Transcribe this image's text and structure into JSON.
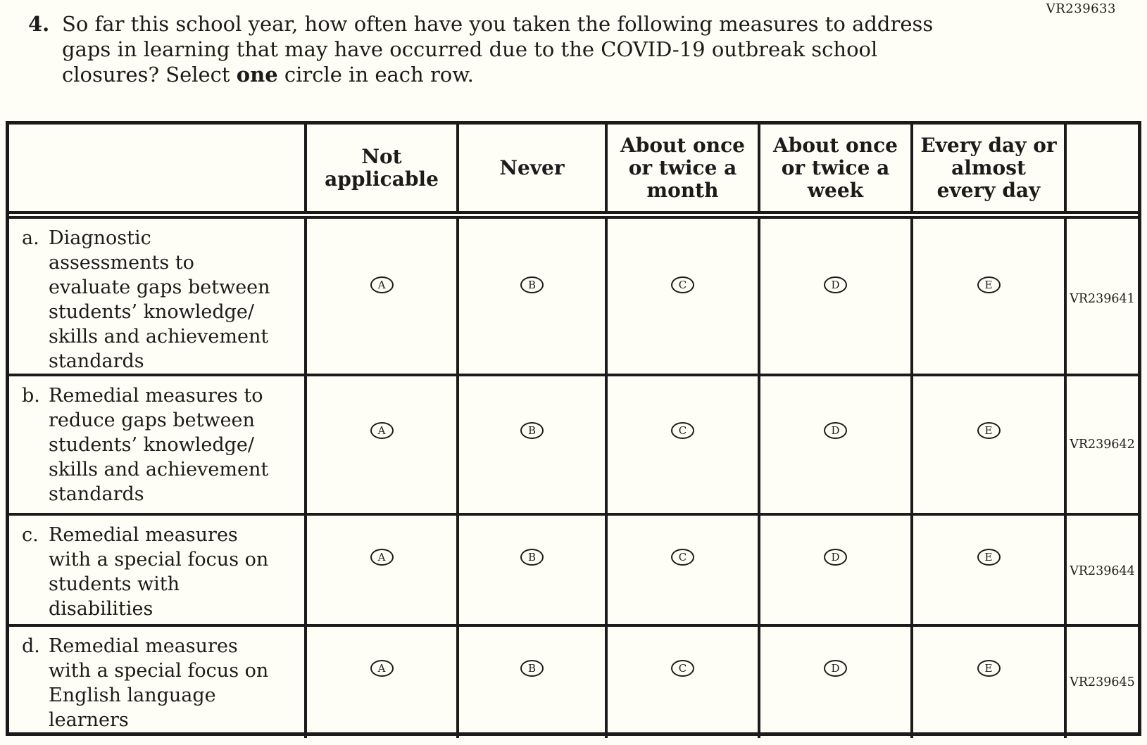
{
  "page_code": "VR239633",
  "question": {
    "number": "4.",
    "lines": [
      "So far this school year, how often have you taken the following measures to address",
      "gaps in learning that may have occurred due to the COVID-19 outbreak school"
    ],
    "line3_pre": "closures? Select ",
    "line3_bold": "one",
    "line3_post": " circle in each row."
  },
  "table": {
    "columns": [
      {
        "label": "Not applicable",
        "lines": [
          "Not",
          "applicable"
        ]
      },
      {
        "label": "Never",
        "lines": [
          "Never"
        ]
      },
      {
        "label": "About once or twice a month",
        "lines": [
          "About once",
          "or twice a",
          "month"
        ]
      },
      {
        "label": "About once or twice a week",
        "lines": [
          "About once",
          "or twice a",
          "week"
        ]
      },
      {
        "label": "Every day or almost every day",
        "lines": [
          "Every day or",
          "almost",
          "every day"
        ]
      }
    ],
    "options": [
      "A",
      "B",
      "C",
      "D",
      "E"
    ],
    "rows": [
      {
        "letter": "a.",
        "label": "Diagnostic assessments to evaluate gaps between students’ knowledge/ skills and achievement standards",
        "lines": [
          "Diagnostic",
          "assessments to",
          "evaluate gaps between",
          "students’ knowledge/",
          "skills and achievement",
          "standards"
        ],
        "code": "VR239641"
      },
      {
        "letter": "b.",
        "label": "Remedial measures to reduce gaps between students’ knowledge/ skills and achievement standards",
        "lines": [
          "Remedial measures to",
          "reduce gaps between",
          "students’ knowledge/",
          "skills and achievement",
          "standards"
        ],
        "code": "VR239642"
      },
      {
        "letter": "c.",
        "label": "Remedial measures with a special focus on students with disabilities",
        "lines": [
          "Remedial measures",
          "with a special focus on",
          "students with",
          "disabilities"
        ],
        "code": "VR239644"
      },
      {
        "letter": "d.",
        "label": "Remedial measures with a special focus on English language learners",
        "lines": [
          "Remedial measures",
          "with a special focus on",
          "English language",
          "learners"
        ],
        "code": "VR239645"
      }
    ]
  },
  "colors": {
    "background": "#fffef6",
    "ink": "#1b1b1b"
  }
}
